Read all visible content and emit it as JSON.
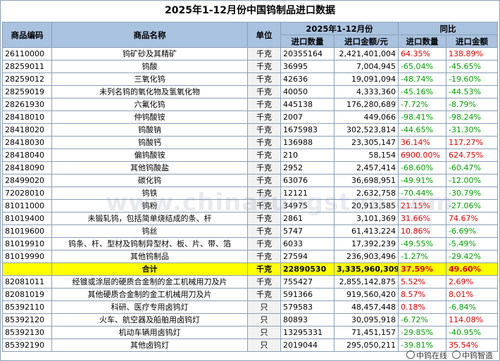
{
  "title": "2025年1-12月份中国钨制品进口数据",
  "headers": {
    "code": "商品编码",
    "name": "商品名称",
    "unit": "单位",
    "period": "2025年1-12月份",
    "yoy": "同比",
    "qty": "进口数量",
    "amount": "进口金额/元",
    "yoy_qty": "进口数量",
    "yoy_amount": "进口金额"
  },
  "rows": [
    {
      "code": "26110000",
      "name": "钨矿砂及其精矿",
      "unit": "千克",
      "qty": "20355164",
      "amount": "2,421,401,004",
      "yoy_qty": "64.35%",
      "yoy_amount": "138.89%"
    },
    {
      "code": "28259011",
      "name": "钨酸",
      "unit": "千克",
      "qty": "36995",
      "amount": "7,004,945",
      "yoy_qty": "-65.04%",
      "yoy_amount": "-45.65%"
    },
    {
      "code": "28259012",
      "name": "三氧化钨",
      "unit": "千克",
      "qty": "42636",
      "amount": "19,091,094",
      "yoy_qty": "-48.74%",
      "yoy_amount": "-19.60%"
    },
    {
      "code": "28259019",
      "name": "未列名钨的氧化物及氢氧化物",
      "unit": "千克",
      "qty": "40050",
      "amount": "4,333,360",
      "yoy_qty": "-45.16%",
      "yoy_amount": "-44.53%"
    },
    {
      "code": "28261930",
      "name": "六氟化钨",
      "unit": "千克",
      "qty": "445138",
      "amount": "176,280,689",
      "yoy_qty": "-7.72%",
      "yoy_amount": "-8.79%"
    },
    {
      "code": "28418010",
      "name": "仲钨酸铵",
      "unit": "千克",
      "qty": "2007",
      "amount": "449,066",
      "yoy_qty": "-98.41%",
      "yoy_amount": "-98.24%"
    },
    {
      "code": "28418020",
      "name": "钨酸钠",
      "unit": "千克",
      "qty": "1675983",
      "amount": "302,523,814",
      "yoy_qty": "-44.65%",
      "yoy_amount": "-31.30%"
    },
    {
      "code": "28418030",
      "name": "钨酸钙",
      "unit": "千克",
      "qty": "136988",
      "amount": "23,305,147",
      "yoy_qty": "36.14%",
      "yoy_amount": "117.27%"
    },
    {
      "code": "28418040",
      "name": "偏钨酸铵",
      "unit": "千克",
      "qty": "210",
      "amount": "58,154",
      "yoy_qty": "6900.00%",
      "yoy_amount": "624.75%"
    },
    {
      "code": "28418090",
      "name": "其他钨酸盐",
      "unit": "千克",
      "qty": "2952",
      "amount": "2,457,414",
      "yoy_qty": "-68.60%",
      "yoy_amount": "-60.47%"
    },
    {
      "code": "28499020",
      "name": "碳化钨",
      "unit": "千克",
      "qty": "63076",
      "amount": "36,698,951",
      "yoy_qty": "-49.91%",
      "yoy_amount": "-12.00%"
    },
    {
      "code": "72028010",
      "name": "钨铁",
      "unit": "千克",
      "qty": "12121",
      "amount": "2,632,758",
      "yoy_qty": "-70.44%",
      "yoy_amount": "-30.79%"
    },
    {
      "code": "81011000",
      "name": "钨粉",
      "unit": "千克",
      "qty": "34975",
      "amount": "20,913,585",
      "yoy_qty": "21.15%",
      "yoy_amount": "-27.06%"
    },
    {
      "code": "81019400",
      "name": "未锻轧钨，包括简单烧结成的条、杆",
      "unit": "千克",
      "qty": "2861",
      "amount": "3,101,369",
      "yoy_qty": "31.66%",
      "yoy_amount": "74.67%"
    },
    {
      "code": "81019600",
      "name": "钨丝",
      "unit": "千克",
      "qty": "5747",
      "amount": "61,413,224",
      "yoy_qty": "10.86%",
      "yoy_amount": "-6.69%"
    },
    {
      "code": "81019910",
      "name": "钨条、杆、型材及钨制异型材、板、片、带、箔",
      "unit": "千克",
      "qty": "6033",
      "amount": "17,392,239",
      "yoy_qty": "-49.55%",
      "yoy_amount": "-5.49%"
    },
    {
      "code": "81019990",
      "name": "其他钨制品",
      "unit": "千克",
      "qty": "27594",
      "amount": "236,903,496",
      "yoy_qty": "-1.27%",
      "yoy_amount": "-29.42%"
    }
  ],
  "total": {
    "code": "",
    "name": "合计",
    "unit": "千克",
    "qty": "22890530",
    "amount": "3,335,960,309",
    "yoy_qty": "37.59%",
    "yoy_amount": "49.60%"
  },
  "rows2": [
    {
      "code": "82081011",
      "name": "经镀或涂层的硬质合金制的金工机械用刀及片",
      "unit": "千克",
      "qty": "755427",
      "amount": "2,855,142,875",
      "yoy_qty": "5.52%",
      "yoy_amount": "2.69%"
    },
    {
      "code": "82081019",
      "name": "其他硬质合金制的金工机械用刀及片",
      "unit": "千克",
      "qty": "591366",
      "amount": "919,560,420",
      "yoy_qty": "8.57%",
      "yoy_amount": "8.01%"
    },
    {
      "code": "85392110",
      "name": "科研、医疗专用卤钨灯",
      "unit": "只",
      "qty": "579583",
      "amount": "48,457,448",
      "yoy_qty": "0.18%",
      "yoy_amount": "-6.84%"
    },
    {
      "code": "85392120",
      "name": "火车、航空器及船舶用卤钨灯",
      "unit": "只",
      "qty": "80893",
      "amount": "30,095,918",
      "yoy_qty": "-6.72%",
      "yoy_amount": "114.08%"
    },
    {
      "code": "85392130",
      "name": "机动车辆用卤钨灯",
      "unit": "只",
      "qty": "13295331",
      "amount": "71,451,157",
      "yoy_qty": "-29.85%",
      "yoy_amount": "-40.95%"
    },
    {
      "code": "85392190",
      "name": "其他卤钨灯",
      "unit": "只",
      "qty": "2019044",
      "amount": "295,050,211",
      "yoy_qty": "-39.81%",
      "yoy_amount": "35.54%"
    }
  ],
  "footer": {
    "left": "中钨在线",
    "right": "中钨智造"
  },
  "watermark": "www.chinatungsten.com",
  "colors": {
    "header_bg": "#a9c2df",
    "total_bg": "#ffff00",
    "positive": "#e00000",
    "negative": "#00a000"
  }
}
